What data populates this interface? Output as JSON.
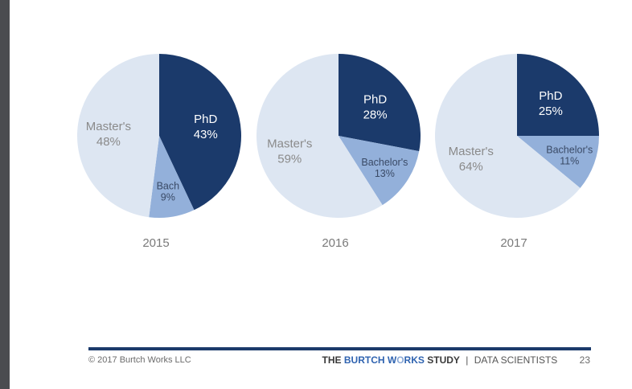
{
  "chart_data": [
    {
      "type": "pie",
      "label": "2015",
      "slices": [
        {
          "name": "PhD",
          "label": "PhD",
          "value": 43,
          "value_label": "43%",
          "color": "#1b3a6b",
          "text_color": "#ffffff"
        },
        {
          "name": "Bachelor's",
          "label": "Bach",
          "value": 9,
          "value_label": "9%",
          "color": "#93b0da",
          "text_color": "#3a4a66"
        },
        {
          "name": "Master's",
          "label": "Master's",
          "value": 48,
          "value_label": "48%",
          "color": "#dde6f2",
          "text_color": "#8a8a8a"
        }
      ]
    },
    {
      "type": "pie",
      "label": "2016",
      "slices": [
        {
          "name": "PhD",
          "label": "PhD",
          "value": 28,
          "value_label": "28%",
          "color": "#1b3a6b",
          "text_color": "#ffffff"
        },
        {
          "name": "Bachelor's",
          "label": "Bachelor's",
          "value": 13,
          "value_label": "13%",
          "color": "#93b0da",
          "text_color": "#3a4a66"
        },
        {
          "name": "Master's",
          "label": "Master's",
          "value": 59,
          "value_label": "59%",
          "color": "#dde6f2",
          "text_color": "#8a8a8a"
        }
      ]
    },
    {
      "type": "pie",
      "label": "2017",
      "slices": [
        {
          "name": "PhD",
          "label": "PhD",
          "value": 25,
          "value_label": "25%",
          "color": "#1b3a6b",
          "text_color": "#ffffff"
        },
        {
          "name": "Bachelor's",
          "label": "Bachelor's",
          "value": 11,
          "value_label": "11%",
          "color": "#93b0da",
          "text_color": "#3a4a66"
        },
        {
          "name": "Master's",
          "label": "Master's",
          "value": 64,
          "value_label": "64%",
          "color": "#dde6f2",
          "text_color": "#8a8a8a"
        }
      ]
    }
  ],
  "footer": {
    "copyright": "© 2017 Burtch Works LLC",
    "brand_the": "THE",
    "brand_burtch": "BURTCH",
    "brand_w": "W",
    "brand_o": "O",
    "brand_rks": "RKS",
    "brand_study": "STUDY",
    "separator": "|",
    "section": "DATA SCIENTISTS",
    "page_number": "23"
  }
}
